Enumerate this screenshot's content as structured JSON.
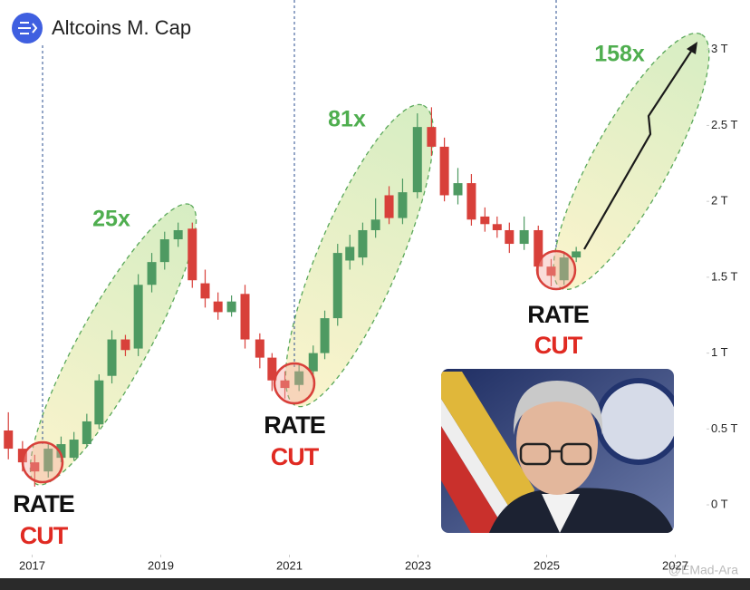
{
  "chart_data": {
    "type": "candlestick",
    "title": "Altcoins M. Cap",
    "x": [
      2016.63,
      2016.85,
      2017.04,
      2017.25,
      2017.45,
      2017.65,
      2017.85,
      2018.04,
      2018.24,
      2018.45,
      2018.65,
      2018.86,
      2019.06,
      2019.27,
      2019.49,
      2019.69,
      2019.89,
      2020.1,
      2020.31,
      2020.54,
      2020.73,
      2020.93,
      2021.15,
      2021.37,
      2021.55,
      2021.75,
      2021.94,
      2022.14,
      2022.34,
      2022.55,
      2022.76,
      2022.99,
      2023.21,
      2023.41,
      2023.62,
      2023.83,
      2024.04,
      2024.23,
      2024.42,
      2024.65,
      2024.87,
      2025.07,
      2025.27,
      2025.46
    ],
    "open": [
      0.49,
      0.37,
      0.28,
      0.22,
      0.31,
      0.31,
      0.4,
      0.53,
      0.85,
      1.09,
      1.03,
      1.45,
      1.6,
      1.75,
      1.82,
      1.46,
      1.34,
      1.27,
      1.39,
      1.09,
      0.97,
      0.82,
      0.79,
      0.88,
      1.0,
      1.23,
      1.61,
      1.63,
      1.81,
      2.04,
      1.89,
      2.06,
      2.49,
      2.36,
      2.04,
      2.12,
      1.9,
      1.85,
      1.81,
      1.72,
      1.81,
      1.57,
      1.48,
      1.63
    ],
    "high": [
      0.61,
      0.42,
      0.33,
      0.4,
      0.45,
      0.48,
      0.6,
      0.86,
      1.15,
      1.12,
      1.52,
      1.66,
      1.8,
      1.86,
      1.86,
      1.55,
      1.4,
      1.38,
      1.45,
      1.13,
      1.0,
      0.88,
      0.92,
      1.05,
      1.28,
      1.72,
      1.78,
      1.86,
      2.02,
      2.1,
      2.15,
      2.58,
      2.62,
      2.42,
      2.22,
      2.18,
      1.96,
      1.9,
      1.86,
      1.9,
      1.84,
      1.62,
      1.66,
      1.7
    ],
    "low": [
      0.3,
      0.22,
      0.12,
      0.18,
      0.28,
      0.29,
      0.38,
      0.5,
      0.8,
      0.98,
      0.98,
      1.4,
      1.55,
      1.7,
      1.43,
      1.3,
      1.22,
      1.24,
      1.03,
      0.9,
      0.75,
      0.7,
      0.75,
      0.84,
      0.96,
      1.18,
      1.55,
      1.58,
      1.76,
      1.85,
      1.85,
      2.02,
      2.3,
      2.0,
      1.98,
      1.84,
      1.8,
      1.76,
      1.66,
      1.68,
      1.5,
      1.44,
      1.45,
      1.6
    ],
    "close": [
      0.37,
      0.28,
      0.22,
      0.37,
      0.4,
      0.43,
      0.55,
      0.82,
      1.09,
      1.02,
      1.45,
      1.6,
      1.75,
      1.81,
      1.48,
      1.36,
      1.27,
      1.34,
      1.09,
      0.97,
      0.82,
      0.77,
      0.88,
      1.0,
      1.23,
      1.66,
      1.7,
      1.81,
      1.88,
      1.89,
      2.06,
      2.49,
      2.36,
      2.04,
      2.12,
      1.88,
      1.85,
      1.81,
      1.72,
      1.81,
      1.57,
      1.51,
      1.63,
      1.67
    ],
    "up_color": "#4e9a62",
    "down_color": "#d8403a",
    "xlim": [
      2016.5,
      2027.5
    ],
    "xticks": [
      2017,
      2019,
      2021,
      2023,
      2025,
      2027
    ],
    "ylim": [
      -0.4,
      3.1
    ],
    "yticks": [
      {
        "value": 0,
        "label": "0 T"
      },
      {
        "value": 0.5,
        "label": "0.5 T"
      },
      {
        "value": 1,
        "label": "1 T"
      },
      {
        "value": 1.5,
        "label": "1.5 T"
      },
      {
        "value": 2,
        "label": "2 T"
      },
      {
        "value": 2.5,
        "label": "2.5 T"
      },
      {
        "value": 3,
        "label": "3 T"
      }
    ],
    "annotations": {
      "multiples": [
        "25x",
        "81x",
        "158x"
      ],
      "rate": "RATE",
      "cut": "CUT"
    },
    "watermark": "@EMad-Ara"
  }
}
